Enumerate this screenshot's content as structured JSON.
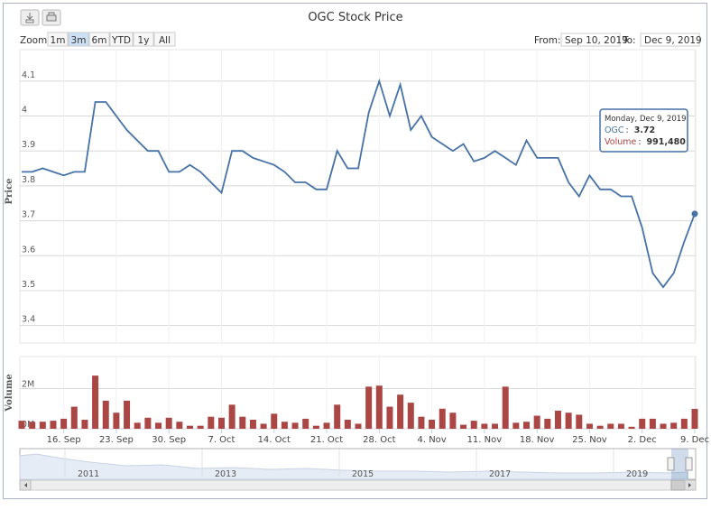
{
  "chart_data": {
    "type": "stock",
    "title": "OGC Stock Price",
    "range_selector": {
      "label": "Zoom",
      "buttons": [
        "1m",
        "3m",
        "6m",
        "YTD",
        "1y",
        "All"
      ],
      "selected": 1,
      "from_label": "From:",
      "from": "Sep 10, 2019",
      "to_label": "To:",
      "to": "Dec 9, 2019"
    },
    "ylabel": "Price",
    "y2label": "Volume",
    "x": [
      "2019-09-10",
      "2019-09-11",
      "2019-09-12",
      "2019-09-13",
      "2019-09-16",
      "2019-09-17",
      "2019-09-18",
      "2019-09-19",
      "2019-09-20",
      "2019-09-23",
      "2019-09-24",
      "2019-09-25",
      "2019-09-26",
      "2019-09-27",
      "2019-09-30",
      "2019-10-01",
      "2019-10-02",
      "2019-10-03",
      "2019-10-04",
      "2019-10-07",
      "2019-10-08",
      "2019-10-09",
      "2019-10-10",
      "2019-10-11",
      "2019-10-14",
      "2019-10-15",
      "2019-10-16",
      "2019-10-17",
      "2019-10-18",
      "2019-10-21",
      "2019-10-22",
      "2019-10-23",
      "2019-10-24",
      "2019-10-25",
      "2019-10-28",
      "2019-10-29",
      "2019-10-30",
      "2019-10-31",
      "2019-11-01",
      "2019-11-04",
      "2019-11-05",
      "2019-11-06",
      "2019-11-07",
      "2019-11-08",
      "2019-11-11",
      "2019-11-12",
      "2019-11-13",
      "2019-11-14",
      "2019-11-15",
      "2019-11-18",
      "2019-11-19",
      "2019-11-20",
      "2019-11-21",
      "2019-11-22",
      "2019-11-25",
      "2019-11-26",
      "2019-11-27",
      "2019-11-28",
      "2019-11-29",
      "2019-12-02",
      "2019-12-03",
      "2019-12-04",
      "2019-12-05",
      "2019-12-06",
      "2019-12-09"
    ],
    "series": [
      {
        "name": "OGC",
        "color": "#4572a7",
        "axis": "y",
        "values": [
          3.84,
          3.84,
          3.85,
          3.84,
          3.83,
          3.84,
          3.84,
          4.04,
          4.04,
          4.0,
          3.96,
          3.93,
          3.9,
          3.9,
          3.84,
          3.84,
          3.86,
          3.84,
          3.81,
          3.78,
          3.9,
          3.9,
          3.88,
          3.87,
          3.86,
          3.84,
          3.81,
          3.81,
          3.79,
          3.79,
          3.9,
          3.85,
          3.85,
          4.01,
          4.1,
          4.0,
          4.09,
          3.96,
          4.0,
          3.94,
          3.92,
          3.9,
          3.92,
          3.87,
          3.88,
          3.9,
          3.88,
          3.86,
          3.93,
          3.88,
          3.88,
          3.88,
          3.81,
          3.77,
          3.83,
          3.79,
          3.79,
          3.77,
          3.77,
          3.68,
          3.55,
          3.51,
          3.55,
          3.64,
          3.72
        ]
      },
      {
        "name": "Volume",
        "color": "#aa4643",
        "axis": "y2",
        "values": [
          400000,
          350000,
          350000,
          400000,
          500000,
          1100000,
          450000,
          2650000,
          1400000,
          800000,
          1400000,
          300000,
          550000,
          300000,
          550000,
          350000,
          150000,
          150000,
          600000,
          550000,
          1200000,
          600000,
          450000,
          250000,
          750000,
          350000,
          300000,
          500000,
          150000,
          300000,
          1200000,
          450000,
          250000,
          2100000,
          2150000,
          1100000,
          1700000,
          1300000,
          600000,
          450000,
          1000000,
          800000,
          200000,
          400000,
          250000,
          250000,
          2100000,
          300000,
          350000,
          650000,
          500000,
          900000,
          800000,
          700000,
          250000,
          150000,
          250000,
          250000,
          100000,
          500000,
          500000,
          250000,
          300000,
          500000,
          991480
        ]
      }
    ],
    "ylim": [
      3.35,
      4.19
    ],
    "yticks": [
      3.4,
      3.5,
      3.6,
      3.7,
      3.8,
      3.9,
      4,
      4.1
    ],
    "y2lim": [
      0,
      3600000
    ],
    "y2ticks": [
      {
        "value": 0,
        "label": "0M"
      },
      {
        "value": 2000000,
        "label": "2M"
      }
    ],
    "xticks": [
      {
        "value": "2019-09-16",
        "label": "16. Sep"
      },
      {
        "value": "2019-09-23",
        "label": "23. Sep"
      },
      {
        "value": "2019-09-30",
        "label": "30. Sep"
      },
      {
        "value": "2019-10-07",
        "label": "7. Oct"
      },
      {
        "value": "2019-10-14",
        "label": "14. Oct"
      },
      {
        "value": "2019-10-21",
        "label": "21. Oct"
      },
      {
        "value": "2019-10-28",
        "label": "28. Oct"
      },
      {
        "value": "2019-11-04",
        "label": "4. Nov"
      },
      {
        "value": "2019-11-11",
        "label": "11. Nov"
      },
      {
        "value": "2019-11-18",
        "label": "18. Nov"
      },
      {
        "value": "2019-11-25",
        "label": "25. Nov"
      },
      {
        "value": "2019-12-02",
        "label": "2. Dec"
      },
      {
        "value": "2019-12-09",
        "label": "9. Dec"
      }
    ],
    "grid": true,
    "tooltip": {
      "header": "Monday, Dec 9, 2019",
      "price_name": "OGC",
      "price": 3.72,
      "volume_name": "Volume",
      "volume": "991,480"
    },
    "navigator": {
      "labels": [
        "2011",
        "2013",
        "2015",
        "2017",
        "2019"
      ]
    }
  }
}
